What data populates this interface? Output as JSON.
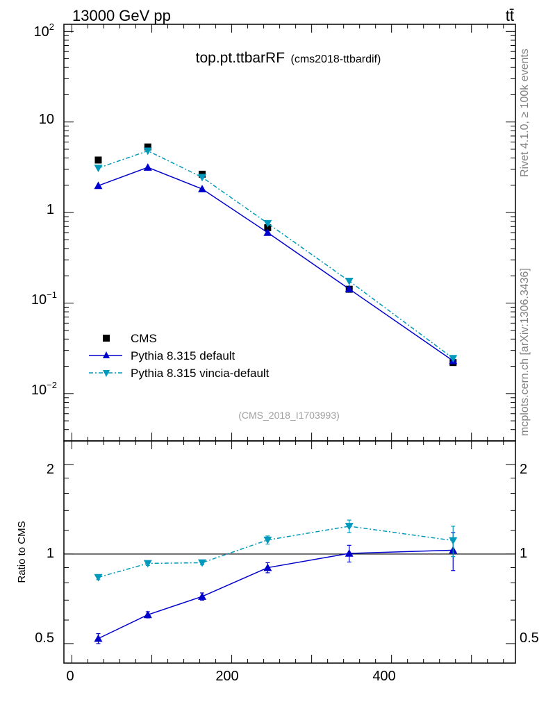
{
  "header": {
    "beam_label": "13000 GeV pp",
    "process_label": "tt̄"
  },
  "side_labels": {
    "rivet": "Rivet 4.1.0, ≥ 100k events",
    "source": "mcplots.cern.ch [arXiv:1306.3436]"
  },
  "chart_data": {
    "type": "line",
    "title": "top.pt.ttbarRF",
    "subtitle": "(cms2018-ttbardif)",
    "analysis_id": "(CMS_2018_I1703993)",
    "x": [
      33,
      95,
      163,
      245,
      347,
      477
    ],
    "main_panel": {
      "yscale": "log",
      "ylim": [
        0.003,
        120
      ],
      "ytick_labels": {
        "p2": {
          "base": "10",
          "exp": "2"
        },
        "p1": "10",
        "p0": "1",
        "m1": {
          "base": "10",
          "exp": "−1"
        },
        "m2": {
          "base": "10",
          "exp": "−2"
        }
      },
      "legend_position": "bottom-left",
      "series": [
        {
          "name": "CMS",
          "values": [
            3.8,
            5.3,
            2.65,
            0.68,
            0.142,
            0.022
          ],
          "color": "#000000",
          "marker": "square"
        },
        {
          "name": "Pythia 8.315 default",
          "values": [
            1.98,
            3.15,
            1.82,
            0.6,
            0.143,
            0.023
          ],
          "color": "#0000cc",
          "marker": "triangle-up",
          "line": "solid"
        },
        {
          "name": "Pythia 8.315 vincia-default",
          "values": [
            3.1,
            4.8,
            2.45,
            0.76,
            0.175,
            0.0245
          ],
          "color": "#0099bb",
          "marker": "triangle-down",
          "line": "dashdot"
        }
      ]
    },
    "ratio_panel": {
      "ylabel": "Ratio to CMS",
      "yscale": "log",
      "ylim": [
        0.43,
        2.4
      ],
      "ytick_labels": [
        "2",
        "1",
        "0.5"
      ],
      "reference": 1,
      "series": [
        {
          "name": "Pythia 8.315 default",
          "values": [
            0.52,
            0.625,
            0.72,
            0.9,
            1.005,
            1.03
          ],
          "err": [
            0.02,
            0.015,
            0.02,
            0.035,
            0.065,
            0.15
          ],
          "color": "#0000cc",
          "marker": "triangle-up"
        },
        {
          "name": "Pythia 8.315 vincia-default",
          "values": [
            0.835,
            0.93,
            0.935,
            1.115,
            1.24,
            1.11
          ],
          "err": [
            0.015,
            0.015,
            0.015,
            0.035,
            0.06,
            0.13
          ],
          "color": "#0099bb",
          "marker": "triangle-down"
        }
      ]
    },
    "xaxis": {
      "xlim": [
        -10,
        555
      ],
      "tick_labels": [
        "0",
        "200",
        "400"
      ]
    }
  }
}
